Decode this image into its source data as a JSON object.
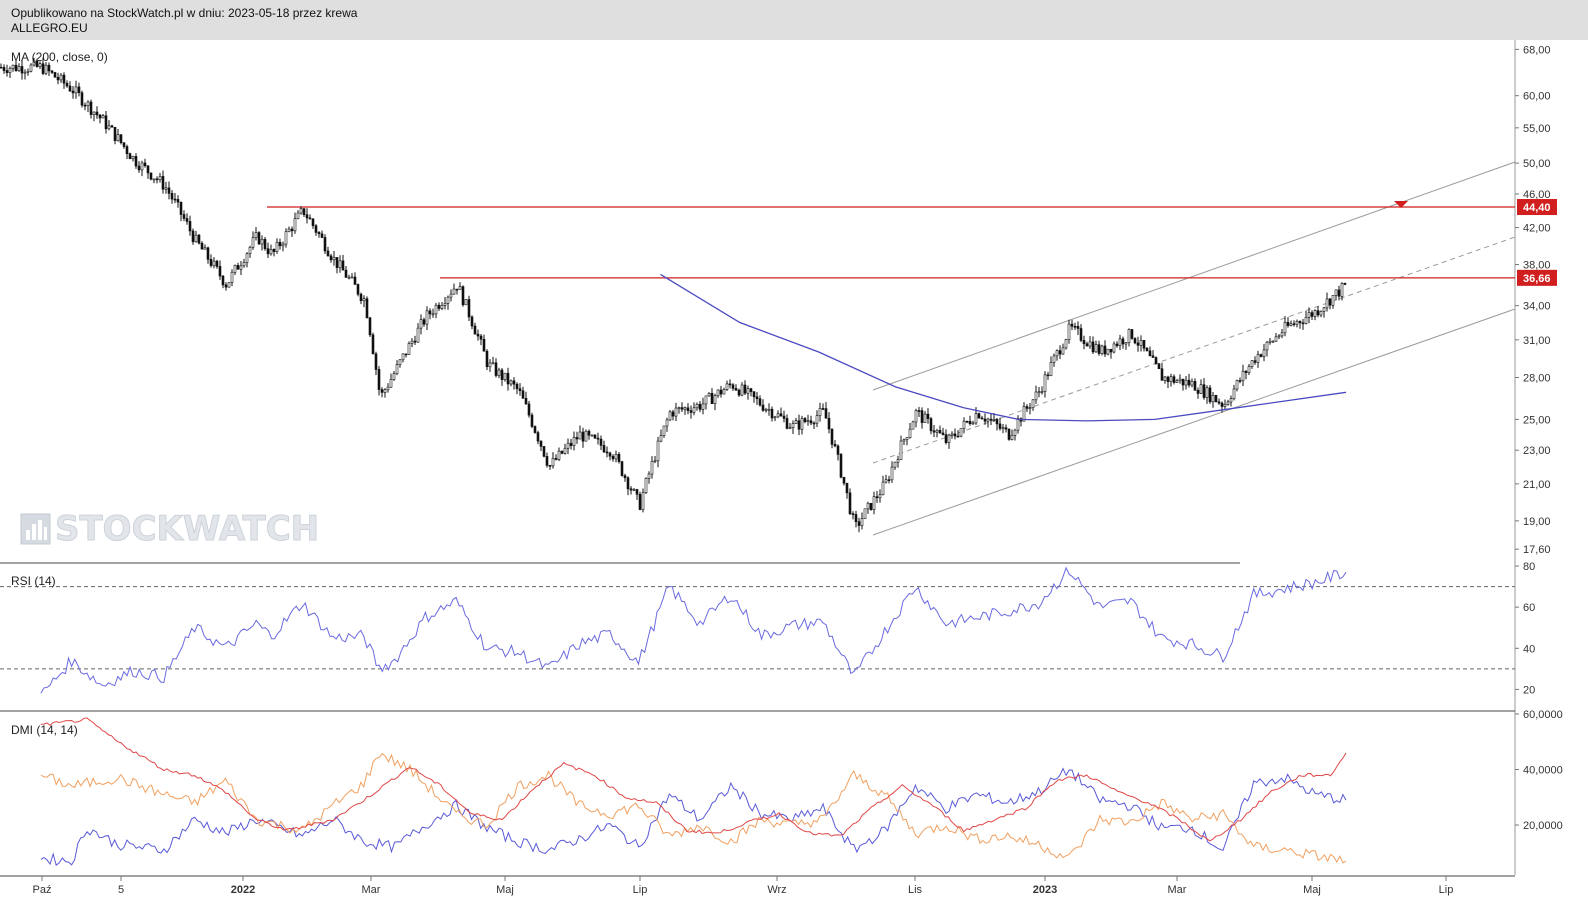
{
  "header": {
    "line1": "Opublikowano na StockWatch.pl w dniu: 2023-05-18 przez krewa",
    "line2": "ALLEGRO.EU"
  },
  "watermark": "STOCKWATCH",
  "colors": {
    "price": "#111111",
    "ma": "#4a4ac0",
    "levels": "#d11f1f",
    "channel": "#9a9a9a",
    "rsi": "#6a6ae0",
    "dmi_plus": "#5a5ad8",
    "dmi_minus": "#f0a060",
    "adx": "#e04848"
  },
  "chart_data": [
    {
      "type": "line",
      "panel": "price",
      "label": "MA (200, close, 0)",
      "x_ticks": [
        "Paź",
        "5",
        "2022",
        "Mar",
        "Maj",
        "Lip",
        "Wrz",
        "Lis",
        "2023",
        "Mar",
        "Maj",
        "Lip"
      ],
      "y_scale": "log",
      "ylim": [
        17.0,
        69.0
      ],
      "y_ticks": [
        "68,00",
        "60,00",
        "55,00",
        "50,00",
        "46,00",
        "42,00",
        "38,00",
        "34,00",
        "31,00",
        "28,00",
        "25,00",
        "23,00",
        "21,00",
        "19,00",
        "17,60"
      ],
      "levels": [
        {
          "value": 44.4,
          "label": "44,40"
        },
        {
          "value": 36.66,
          "label": "36,66"
        }
      ],
      "close_series": [
        [
          "2021-10-01",
          64.8
        ],
        [
          "2021-10-15",
          61.0
        ],
        [
          "2021-10-29",
          56.0
        ],
        [
          "2021-11-12",
          50.5
        ],
        [
          "2021-11-26",
          47.0
        ],
        [
          "2021-12-10",
          40.5
        ],
        [
          "2021-12-24",
          36.0
        ],
        [
          "2022-01-07",
          41.0
        ],
        [
          "2022-01-14",
          39.0
        ],
        [
          "2022-01-28",
          44.0
        ],
        [
          "2022-02-11",
          38.5
        ],
        [
          "2022-02-25",
          34.5
        ],
        [
          "2022-03-04",
          26.5
        ],
        [
          "2022-03-11",
          28.5
        ],
        [
          "2022-03-25",
          33.0
        ],
        [
          "2022-04-08",
          36.0
        ],
        [
          "2022-04-22",
          29.0
        ],
        [
          "2022-05-06",
          27.0
        ],
        [
          "2022-05-20",
          22.0
        ],
        [
          "2022-06-03",
          24.0
        ],
        [
          "2022-06-17",
          23.0
        ],
        [
          "2022-06-30",
          19.8
        ],
        [
          "2022-07-14",
          25.5
        ],
        [
          "2022-07-28",
          26.0
        ],
        [
          "2022-08-11",
          27.5
        ],
        [
          "2022-08-25",
          26.0
        ],
        [
          "2022-09-08",
          24.5
        ],
        [
          "2022-09-22",
          25.5
        ],
        [
          "2022-10-06",
          18.6
        ],
        [
          "2022-10-20",
          21.0
        ],
        [
          "2022-11-03",
          25.5
        ],
        [
          "2022-11-17",
          23.5
        ],
        [
          "2022-12-01",
          25.5
        ],
        [
          "2022-12-15",
          24.0
        ],
        [
          "2022-12-29",
          27.0
        ],
        [
          "2023-01-12",
          32.0
        ],
        [
          "2023-01-26",
          30.0
        ],
        [
          "2023-02-09",
          31.5
        ],
        [
          "2023-02-23",
          28.0
        ],
        [
          "2023-03-09",
          27.5
        ],
        [
          "2023-03-23",
          26.0
        ],
        [
          "2023-04-06",
          29.5
        ],
        [
          "2023-04-20",
          32.0
        ],
        [
          "2023-05-04",
          33.5
        ],
        [
          "2023-05-18",
          36.0
        ]
      ],
      "ma200_series": [
        [
          "2022-07-10",
          37.0
        ],
        [
          "2022-08-15",
          32.5
        ],
        [
          "2022-09-20",
          30.0
        ],
        [
          "2022-10-25",
          27.3
        ],
        [
          "2022-11-25",
          25.8
        ],
        [
          "2022-12-20",
          25.0
        ],
        [
          "2023-01-20",
          24.9
        ],
        [
          "2023-02-20",
          25.0
        ],
        [
          "2023-03-25",
          25.7
        ],
        [
          "2023-05-18",
          26.9
        ]
      ]
    },
    {
      "type": "line",
      "panel": "rsi",
      "label": "RSI (14)",
      "ylim": [
        10,
        80
      ],
      "y_ticks": [
        "80",
        "60",
        "40",
        "20"
      ],
      "levels": [
        70,
        30
      ],
      "series": [
        [
          "2021-10-01",
          17
        ],
        [
          "2021-10-15",
          34
        ],
        [
          "2021-10-29",
          22
        ],
        [
          "2021-11-12",
          29
        ],
        [
          "2021-11-26",
          26
        ],
        [
          "2021-12-10",
          50
        ],
        [
          "2021-12-24",
          40
        ],
        [
          "2022-01-07",
          52
        ],
        [
          "2022-01-14",
          46
        ],
        [
          "2022-01-28",
          62
        ],
        [
          "2022-02-11",
          45
        ],
        [
          "2022-02-25",
          46
        ],
        [
          "2022-03-04",
          30
        ],
        [
          "2022-03-11",
          34
        ],
        [
          "2022-03-25",
          55
        ],
        [
          "2022-04-08",
          63
        ],
        [
          "2022-04-22",
          40
        ],
        [
          "2022-05-06",
          38
        ],
        [
          "2022-05-20",
          30
        ],
        [
          "2022-06-03",
          42
        ],
        [
          "2022-06-17",
          47
        ],
        [
          "2022-06-30",
          33
        ],
        [
          "2022-07-14",
          70
        ],
        [
          "2022-07-28",
          52
        ],
        [
          "2022-08-11",
          66
        ],
        [
          "2022-08-25",
          46
        ],
        [
          "2022-09-08",
          51
        ],
        [
          "2022-09-22",
          53
        ],
        [
          "2022-10-06",
          26
        ],
        [
          "2022-10-20",
          48
        ],
        [
          "2022-11-03",
          70
        ],
        [
          "2022-11-17",
          52
        ],
        [
          "2022-12-01",
          55
        ],
        [
          "2022-12-15",
          58
        ],
        [
          "2022-12-29",
          62
        ],
        [
          "2023-01-12",
          78
        ],
        [
          "2023-01-26",
          60
        ],
        [
          "2023-02-09",
          63
        ],
        [
          "2023-02-23",
          45
        ],
        [
          "2023-03-09",
          42
        ],
        [
          "2023-03-23",
          36
        ],
        [
          "2023-04-06",
          66
        ],
        [
          "2023-04-20",
          69
        ],
        [
          "2023-05-04",
          72
        ],
        [
          "2023-05-18",
          77
        ]
      ]
    },
    {
      "type": "line",
      "panel": "dmi",
      "label": "DMI (14, 14)",
      "ylim": [
        2,
        60
      ],
      "y_ticks": [
        "60,0000",
        "40,0000",
        "20,0000"
      ],
      "series": [
        {
          "role": "plus",
          "values": [
            [
              "2021-10-01",
              8
            ],
            [
              "2021-10-15",
              7
            ],
            [
              "2021-10-22",
              19
            ],
            [
              "2021-11-05",
              13
            ],
            [
              "2021-11-26",
              11
            ],
            [
              "2021-12-10",
              22
            ],
            [
              "2021-12-24",
              17
            ],
            [
              "2022-01-07",
              22
            ],
            [
              "2022-01-28",
              16
            ],
            [
              "2022-02-11",
              22
            ],
            [
              "2022-02-25",
              14
            ],
            [
              "2022-03-11",
              12
            ],
            [
              "2022-03-25",
              20
            ],
            [
              "2022-04-08",
              27
            ],
            [
              "2022-04-22",
              19
            ],
            [
              "2022-05-06",
              14
            ],
            [
              "2022-05-20",
              11
            ],
            [
              "2022-06-03",
              15
            ],
            [
              "2022-06-17",
              20
            ],
            [
              "2022-06-30",
              12
            ],
            [
              "2022-07-14",
              31
            ],
            [
              "2022-07-28",
              22
            ],
            [
              "2022-08-11",
              34
            ],
            [
              "2022-08-25",
              24
            ],
            [
              "2022-09-08",
              22
            ],
            [
              "2022-09-22",
              26
            ],
            [
              "2022-10-06",
              11
            ],
            [
              "2022-10-20",
              18
            ],
            [
              "2022-11-03",
              34
            ],
            [
              "2022-11-17",
              26
            ],
            [
              "2022-12-01",
              31
            ],
            [
              "2022-12-15",
              28
            ],
            [
              "2022-12-29",
              32
            ],
            [
              "2023-01-12",
              40
            ],
            [
              "2023-01-26",
              29
            ],
            [
              "2023-02-09",
              27
            ],
            [
              "2023-02-23",
              19
            ],
            [
              "2023-03-09",
              19
            ],
            [
              "2023-03-23",
              11
            ],
            [
              "2023-04-06",
              35
            ],
            [
              "2023-04-20",
              37
            ],
            [
              "2023-05-04",
              31
            ],
            [
              "2023-05-18",
              29
            ]
          ]
        },
        {
          "role": "minus",
          "values": [
            [
              "2021-10-01",
              38
            ],
            [
              "2021-10-15",
              34
            ],
            [
              "2021-11-05",
              37
            ],
            [
              "2021-11-26",
              31
            ],
            [
              "2021-12-10",
              28
            ],
            [
              "2021-12-24",
              36
            ],
            [
              "2022-01-07",
              22
            ],
            [
              "2022-01-28",
              18
            ],
            [
              "2022-02-11",
              27
            ],
            [
              "2022-02-25",
              35
            ],
            [
              "2022-03-04",
              46
            ],
            [
              "2022-03-18",
              40
            ],
            [
              "2022-04-08",
              24
            ],
            [
              "2022-04-22",
              20
            ],
            [
              "2022-05-06",
              34
            ],
            [
              "2022-05-20",
              38
            ],
            [
              "2022-06-03",
              27
            ],
            [
              "2022-06-17",
              24
            ],
            [
              "2022-06-30",
              27
            ],
            [
              "2022-07-14",
              16
            ],
            [
              "2022-07-28",
              20
            ],
            [
              "2022-08-11",
              14
            ],
            [
              "2022-08-25",
              22
            ],
            [
              "2022-09-08",
              20
            ],
            [
              "2022-09-22",
              22
            ],
            [
              "2022-10-06",
              38
            ],
            [
              "2022-10-20",
              31
            ],
            [
              "2022-11-03",
              17
            ],
            [
              "2022-11-17",
              20
            ],
            [
              "2022-12-01",
              15
            ],
            [
              "2022-12-15",
              16
            ],
            [
              "2022-12-29",
              13
            ],
            [
              "2023-01-12",
              8
            ],
            [
              "2023-01-26",
              22
            ],
            [
              "2023-02-09",
              21
            ],
            [
              "2023-02-23",
              28
            ],
            [
              "2023-03-09",
              22
            ],
            [
              "2023-03-23",
              24
            ],
            [
              "2023-04-06",
              12
            ],
            [
              "2023-04-20",
              11
            ],
            [
              "2023-05-04",
              9
            ],
            [
              "2023-05-18",
              7
            ]
          ]
        },
        {
          "role": "adx",
          "values": [
            [
              "2021-10-01",
              56
            ],
            [
              "2021-10-22",
              58
            ],
            [
              "2021-11-05",
              50
            ],
            [
              "2021-11-26",
              40
            ],
            [
              "2021-12-10",
              38
            ],
            [
              "2021-12-24",
              32
            ],
            [
              "2022-01-07",
              22
            ],
            [
              "2022-01-21",
              18
            ],
            [
              "2022-02-11",
              22
            ],
            [
              "2022-02-25",
              29
            ],
            [
              "2022-03-18",
              41
            ],
            [
              "2022-04-01",
              34
            ],
            [
              "2022-04-15",
              24
            ],
            [
              "2022-04-29",
              22
            ],
            [
              "2022-05-13",
              33
            ],
            [
              "2022-05-27",
              42
            ],
            [
              "2022-06-10",
              38
            ],
            [
              "2022-06-24",
              30
            ],
            [
              "2022-07-08",
              28
            ],
            [
              "2022-07-22",
              18
            ],
            [
              "2022-08-05",
              17
            ],
            [
              "2022-08-19",
              21
            ],
            [
              "2022-09-02",
              24
            ],
            [
              "2022-09-16",
              17
            ],
            [
              "2022-09-30",
              16
            ],
            [
              "2022-10-14",
              26
            ],
            [
              "2022-10-28",
              34
            ],
            [
              "2022-11-11",
              27
            ],
            [
              "2022-11-25",
              18
            ],
            [
              "2022-12-09",
              22
            ],
            [
              "2022-12-23",
              26
            ],
            [
              "2023-01-06",
              36
            ],
            [
              "2023-01-20",
              38
            ],
            [
              "2023-02-03",
              32
            ],
            [
              "2023-02-17",
              28
            ],
            [
              "2023-03-03",
              22
            ],
            [
              "2023-03-17",
              14
            ],
            [
              "2023-03-31",
              22
            ],
            [
              "2023-04-14",
              32
            ],
            [
              "2023-04-28",
              38
            ],
            [
              "2023-05-11",
              38
            ],
            [
              "2023-05-18",
              46
            ]
          ]
        }
      ]
    }
  ]
}
